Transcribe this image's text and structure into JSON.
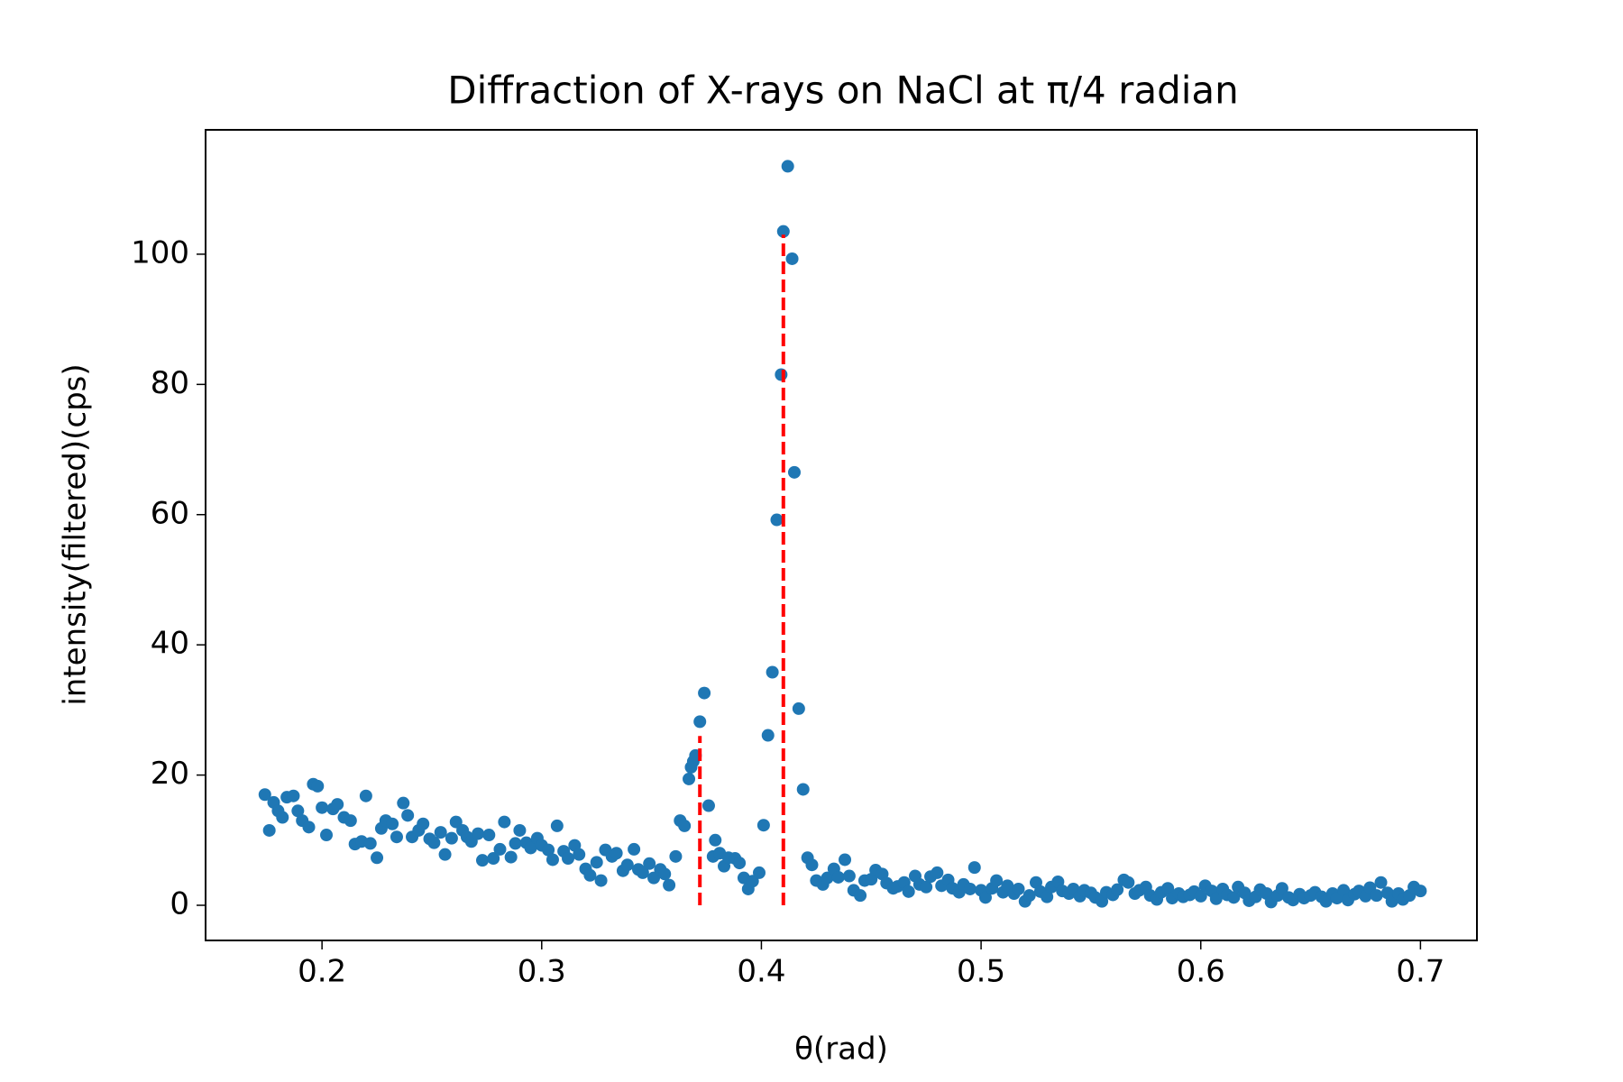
{
  "chart_data": {
    "type": "scatter",
    "title": "Diffraction of X-rays on NaCl at π/4 radian",
    "x_label": "θ(rad)",
    "y_label": "intensity(filtered)(cps)",
    "xlim": [
      0.147,
      0.7257
    ],
    "ylim": [
      -5.4,
      119.1
    ],
    "xticks": [
      0.2,
      0.3,
      0.4,
      0.5,
      0.6,
      0.7
    ],
    "yticks": [
      0,
      20,
      40,
      60,
      80,
      100
    ],
    "series": [
      {
        "color": "#1f77b4",
        "x": [
          0.174,
          0.176,
          0.178,
          0.18,
          0.182,
          0.184,
          0.187,
          0.189,
          0.191,
          0.194,
          0.196,
          0.198,
          0.2,
          0.202,
          0.205,
          0.207,
          0.21,
          0.213,
          0.215,
          0.218,
          0.22,
          0.222,
          0.225,
          0.227,
          0.229,
          0.232,
          0.234,
          0.237,
          0.239,
          0.241,
          0.244,
          0.246,
          0.249,
          0.251,
          0.254,
          0.256,
          0.259,
          0.261,
          0.264,
          0.266,
          0.268,
          0.271,
          0.273,
          0.276,
          0.278,
          0.281,
          0.283,
          0.286,
          0.288,
          0.29,
          0.293,
          0.295,
          0.298,
          0.3,
          0.303,
          0.305,
          0.307,
          0.31,
          0.312,
          0.315,
          0.317,
          0.32,
          0.322,
          0.325,
          0.327,
          0.329,
          0.332,
          0.334,
          0.337,
          0.339,
          0.342,
          0.344,
          0.346,
          0.349,
          0.351,
          0.354,
          0.356,
          0.358,
          0.361,
          0.363,
          0.365,
          0.367,
          0.368,
          0.369,
          0.37,
          0.372,
          0.374,
          0.376,
          0.378,
          0.379,
          0.381,
          0.383,
          0.385,
          0.388,
          0.39,
          0.392,
          0.394,
          0.396,
          0.399,
          0.401,
          0.403,
          0.405,
          0.407,
          0.409,
          0.41,
          0.412,
          0.414,
          0.415,
          0.417,
          0.419,
          0.421,
          0.423,
          0.425,
          0.428,
          0.43,
          0.433,
          0.435,
          0.438,
          0.44,
          0.442,
          0.445,
          0.447,
          0.45,
          0.452,
          0.455,
          0.457,
          0.46,
          0.462,
          0.465,
          0.467,
          0.47,
          0.472,
          0.475,
          0.477,
          0.48,
          0.482,
          0.485,
          0.487,
          0.49,
          0.492,
          0.495,
          0.497,
          0.5,
          0.502,
          0.505,
          0.507,
          0.51,
          0.512,
          0.515,
          0.517,
          0.52,
          0.522,
          0.525,
          0.527,
          0.53,
          0.532,
          0.535,
          0.537,
          0.54,
          0.542,
          0.545,
          0.547,
          0.55,
          0.552,
          0.555,
          0.557,
          0.56,
          0.562,
          0.565,
          0.567,
          0.57,
          0.572,
          0.575,
          0.577,
          0.58,
          0.582,
          0.585,
          0.587,
          0.59,
          0.592,
          0.595,
          0.597,
          0.6,
          0.602,
          0.605,
          0.607,
          0.61,
          0.612,
          0.615,
          0.617,
          0.62,
          0.622,
          0.625,
          0.627,
          0.63,
          0.632,
          0.635,
          0.637,
          0.64,
          0.642,
          0.645,
          0.647,
          0.65,
          0.652,
          0.655,
          0.657,
          0.66,
          0.662,
          0.665,
          0.667,
          0.67,
          0.672,
          0.675,
          0.677,
          0.68,
          0.682,
          0.685,
          0.687,
          0.69,
          0.692,
          0.695,
          0.697,
          0.7
        ],
        "values": [
          17,
          11.5,
          15.8,
          14.5,
          13.5,
          16.6,
          16.8,
          14.5,
          13,
          12,
          18.6,
          18.3,
          15,
          10.8,
          14.8,
          15.5,
          13.5,
          13,
          9.4,
          9.8,
          16.8,
          9.5,
          7.3,
          11.8,
          13,
          12.5,
          10.5,
          15.7,
          13.8,
          10.5,
          11.5,
          12.5,
          10.2,
          9.6,
          11.2,
          7.8,
          10.3,
          12.8,
          11.5,
          10.5,
          9.8,
          11,
          6.9,
          10.8,
          7.2,
          8.6,
          12.8,
          7.4,
          9.5,
          11.5,
          9.6,
          8.8,
          10.3,
          9.2,
          8.5,
          7,
          12.2,
          8.3,
          7.2,
          9.2,
          7.8,
          5.6,
          4.6,
          6.6,
          3.8,
          8.5,
          7.5,
          8,
          5.3,
          6.2,
          8.6,
          5.5,
          5,
          6.4,
          4.2,
          5.5,
          4.8,
          3.1,
          7.5,
          13,
          12.2,
          19.4,
          21.2,
          22.1,
          23,
          28.2,
          32.6,
          15.3,
          7.5,
          10,
          8,
          6,
          7.3,
          7.2,
          6.5,
          4.2,
          2.5,
          3.7,
          5,
          12.3,
          26.1,
          35.8,
          59.2,
          81.5,
          103.5,
          113.5,
          99.3,
          66.5,
          30.2,
          17.8,
          7.3,
          6.2,
          3.8,
          3.2,
          4.2,
          5.6,
          4.3,
          7,
          4.5,
          2.3,
          1.5,
          3.8,
          4,
          5.4,
          4.8,
          3.4,
          2.6,
          2.9,
          3.5,
          2.1,
          4.5,
          3.2,
          2.8,
          4.4,
          5,
          3,
          3.9,
          2.6,
          2,
          3.2,
          2.5,
          5.8,
          2.3,
          1.2,
          2.6,
          3.8,
          2,
          3,
          1.8,
          2.5,
          0.6,
          1.5,
          3.5,
          2.1,
          1.3,
          2.8,
          3.6,
          2.2,
          1.8,
          2.5,
          1.4,
          2.3,
          1.9,
          1.2,
          0.6,
          2,
          1.6,
          2.4,
          3.9,
          3.5,
          1.8,
          2.3,
          2.8,
          1.5,
          0.9,
          2,
          2.6,
          1.1,
          1.8,
          1.3,
          1.6,
          2.1,
          1.4,
          3,
          2.2,
          1,
          2.5,
          1.6,
          1.2,
          2.8,
          1.9,
          0.7,
          1.3,
          2.4,
          1.8,
          0.5,
          1.5,
          2.6,
          1.2,
          0.8,
          1.7,
          1.1,
          1.5,
          2,
          1.3,
          0.6,
          1.8,
          1.1,
          2.3,
          0.8,
          1.7,
          2.2,
          1.4,
          2.7,
          1.5,
          3.5,
          1.9,
          0.6,
          1.8,
          0.9,
          1.5,
          2.8,
          2.2
        ]
      }
    ],
    "vlines": [
      {
        "x": 0.372,
        "ymin": 0,
        "ymax": 26,
        "color": "#ff0000"
      },
      {
        "x": 0.41,
        "ymin": 0,
        "ymax": 103,
        "color": "#ff0000"
      }
    ]
  }
}
